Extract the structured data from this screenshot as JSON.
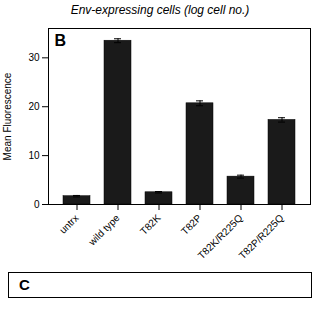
{
  "chart_data": {
    "type": "bar",
    "title": "Env-expressing cells (log cell no.)",
    "ylabel": "Mean Fluorescence",
    "categories": [
      "untrx",
      "wild type",
      "T82K",
      "T82P",
      "T82K/R225Q",
      "T82P/R225Q"
    ],
    "values": [
      1.7,
      33.5,
      2.5,
      20.7,
      5.7,
      17.3
    ],
    "errors": [
      0.15,
      0.4,
      0.15,
      0.5,
      0.3,
      0.45
    ],
    "color": "#1a1a1a",
    "ylim": [
      0,
      36
    ],
    "yticks": [
      0,
      10,
      20,
      30
    ],
    "grid": false,
    "annotations": [
      "B",
      "C"
    ]
  }
}
